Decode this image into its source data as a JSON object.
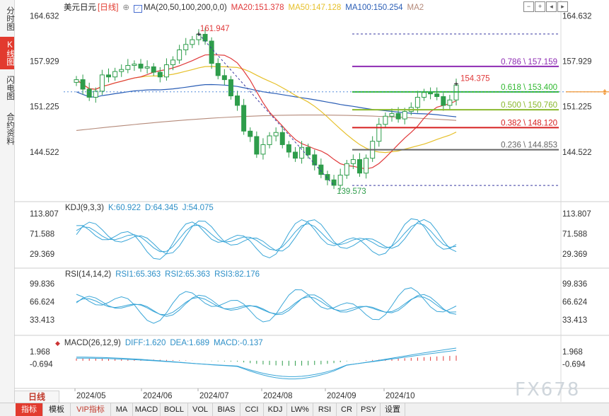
{
  "left_tabs": [
    {
      "label": "分时图",
      "active": false
    },
    {
      "label": "K线图",
      "active": true
    },
    {
      "label": "闪电图",
      "active": false
    },
    {
      "label": "合约资料",
      "active": false
    }
  ],
  "main_legend": {
    "symbol": "美元日元",
    "period": "[日线]",
    "ma_label": "MA(20,50,100,200,0,0)",
    "ma20": "MA20:151.378",
    "ma50": "MA50:147.128",
    "ma100": "MA100:150.254",
    "ma200": "MA2"
  },
  "kdj_legend": {
    "label": "KDJ(9,3,3)",
    "k": "K:60.922",
    "d": "D:64.345",
    "j": "J:54.075"
  },
  "rsi_legend": {
    "label": "RSI(14,14,2)",
    "rsi1": "RSI1:65.363",
    "rsi2": "RSI2:65.363",
    "rsi3": "RSI3:82.176"
  },
  "macd_legend": {
    "label": "MACD(26,12,9)",
    "diff": "DIFF:1.620",
    "dea": "DEA:1.689",
    "macd": "MACD:-0.137"
  },
  "price_axis": [
    "164.632",
    "157.929",
    "151.225",
    "144.522"
  ],
  "kdj_axis": [
    "113.807",
    "71.588",
    "29.369"
  ],
  "rsi_axis": [
    "99.836",
    "66.624",
    "33.413"
  ],
  "macd_axis": [
    "1.968",
    "-0.694"
  ],
  "fib_levels": [
    {
      "label": "0.786 \\ 157.159",
      "value": 157.159,
      "color": "#8e2bb3"
    },
    {
      "label": "0.618 \\ 153.400",
      "value": 153.4,
      "color": "#2eb82e"
    },
    {
      "label": "0.500 \\ 150.760",
      "value": 150.76,
      "color": "#8ab82e"
    },
    {
      "label": "0.382 \\ 148.120",
      "value": 148.12,
      "color": "#d62020"
    },
    {
      "label": "0.236 \\ 144.853",
      "value": 144.853,
      "color": "#666666"
    }
  ],
  "annotations": {
    "high": "161.947",
    "low": "139.573",
    "last": "154.375"
  },
  "x_labels": [
    "2024/05",
    "2024/06",
    "2024/07",
    "2024/08",
    "2024/09",
    "2024/10"
  ],
  "period_button": "日线",
  "watermark": "FX678",
  "bottom_tabs": [
    {
      "label": "指标",
      "active": true
    },
    {
      "label": "模板",
      "active": false
    },
    {
      "label": "VIP指标",
      "active": false,
      "vip": true
    },
    {
      "label": "MA",
      "active": false
    },
    {
      "label": "MACD",
      "active": false
    },
    {
      "label": "BOLL",
      "active": false
    },
    {
      "label": "VOL",
      "active": false
    },
    {
      "label": "BIAS",
      "active": false
    },
    {
      "label": "CCI",
      "active": false
    },
    {
      "label": "KDJ",
      "active": false
    },
    {
      "label": "LW%",
      "active": false
    },
    {
      "label": "RSI",
      "active": false
    },
    {
      "label": "CR",
      "active": false
    },
    {
      "label": "PSY",
      "active": false
    },
    {
      "label": "设置",
      "active": false
    }
  ],
  "chart_data": {
    "type": "candlestick",
    "title": "美元日元 [日线]",
    "x_ticks": [
      "2024/05",
      "2024/06",
      "2024/07",
      "2024/08",
      "2024/09",
      "2024/10"
    ],
    "ylim": [
      137.5,
      165.5
    ],
    "close_path": [
      155.2,
      153.8,
      152.6,
      153.5,
      155.9,
      155.6,
      156.4,
      156.7,
      157.3,
      157.5,
      156.9,
      157.1,
      156.3,
      155.6,
      157.4,
      158.1,
      159.6,
      160.4,
      161.1,
      161.9,
      160.9,
      157.6,
      155.8,
      155.2,
      152.8,
      151.4,
      147.6,
      146.8,
      144.2,
      145.6,
      146.9,
      147.4,
      145.6,
      144.5,
      143.6,
      145.2,
      144.1,
      142.6,
      141.2,
      140.4,
      139.6,
      141.1,
      142.8,
      143.4,
      141.4,
      143.6,
      146.1,
      148.6,
      149.8,
      150.2,
      149.4,
      150.5,
      151.1,
      152.6,
      153.3,
      153.1,
      152.7,
      151.4,
      152.2,
      154.4
    ],
    "series": [
      {
        "name": "MA20",
        "value": 151.378,
        "color": "#e0393a"
      },
      {
        "name": "MA50",
        "value": 147.128,
        "color": "#e6c02a"
      },
      {
        "name": "MA100",
        "value": 150.254,
        "color": "#2a5db5"
      },
      {
        "name": "MA2",
        "color": "#b58a7a"
      }
    ],
    "fibonacci": [
      {
        "ratio": 0.786,
        "value": 157.159
      },
      {
        "ratio": 0.618,
        "value": 153.4
      },
      {
        "ratio": 0.5,
        "value": 150.76
      },
      {
        "ratio": 0.382,
        "value": 148.12
      },
      {
        "ratio": 0.236,
        "value": 144.853
      }
    ],
    "high": 161.947,
    "low": 139.573,
    "last": 154.375,
    "indicators": {
      "KDJ": {
        "K": 60.922,
        "D": 64.345,
        "J": 54.075,
        "ylim": [
          10,
          120
        ]
      },
      "RSI": {
        "RSI1": 65.363,
        "RSI2": 65.363,
        "RSI3": 82.176,
        "ylim": [
          15,
          110
        ]
      },
      "MACD": {
        "DIFF": 1.62,
        "DEA": 1.689,
        "MACD": -0.137,
        "ylim": [
          -5.6,
          3.4
        ]
      }
    }
  }
}
